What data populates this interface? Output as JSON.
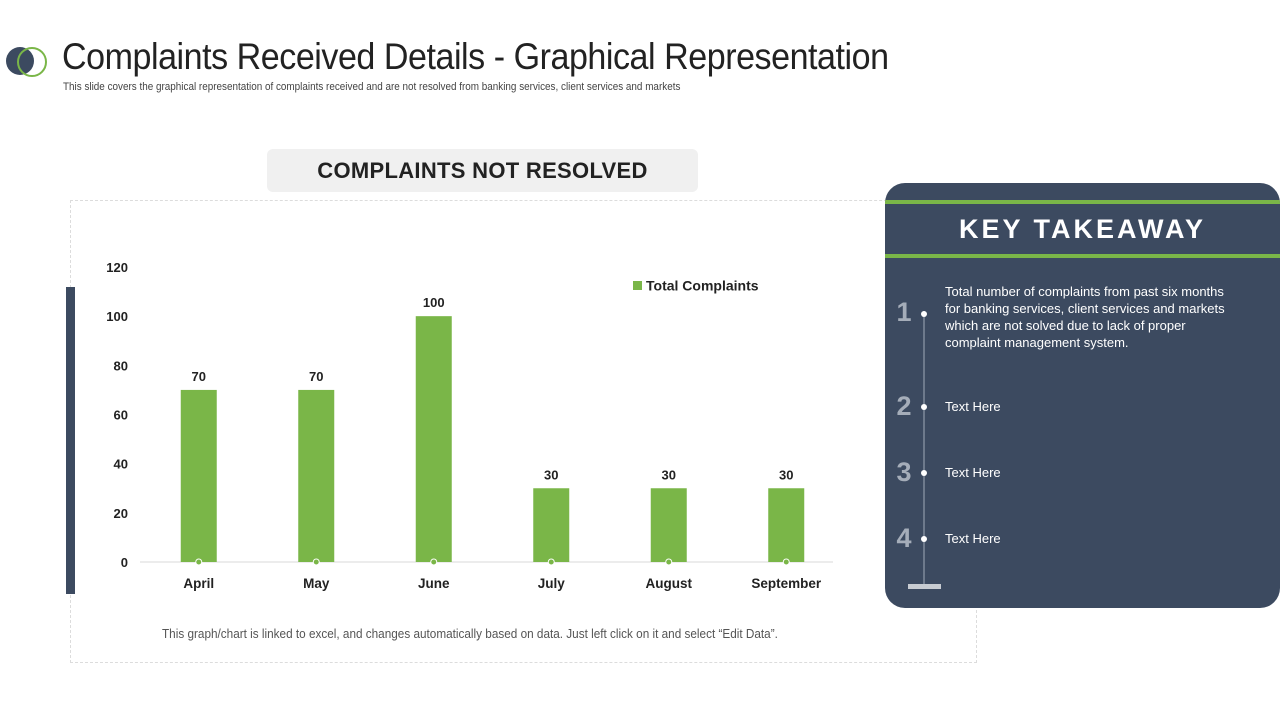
{
  "header": {
    "title": "Complaints Received Details - Graphical Representation",
    "subtitle": "This slide covers the graphical representation of complaints received and are not resolved from banking services, client services and markets"
  },
  "chart_panel": {
    "heading": "COMPLAINTS NOT RESOLVED",
    "note": "This graph/chart is linked to excel, and changes automatically based on data. Just left click on it and select “Edit Data”."
  },
  "chart_data": {
    "type": "bar",
    "title": "",
    "xlabel": "",
    "ylabel": "",
    "categories": [
      "April",
      "May",
      "June",
      "July",
      "August",
      "September"
    ],
    "series": [
      {
        "name": "Total Complaints",
        "values": [
          70,
          70,
          100,
          30,
          30,
          30
        ],
        "color": "#7ab648"
      }
    ],
    "ylim": [
      0,
      120
    ],
    "yticks": [
      0,
      20,
      40,
      60,
      80,
      100,
      120
    ],
    "data_labels": true,
    "grid": false,
    "legend": "top-right"
  },
  "takeaway": {
    "title": "KEY TAKEAWAY",
    "items": [
      {
        "num": "1",
        "text": "Total number of complaints from past six months for banking services, client services and markets which are not solved due to lack of proper complaint management system."
      },
      {
        "num": "2",
        "text": "Text Here"
      },
      {
        "num": "3",
        "text": "Text Here"
      },
      {
        "num": "4",
        "text": "Text Here"
      }
    ]
  },
  "colors": {
    "accent_green": "#7ab648",
    "navy": "#3c4a60",
    "header_bg": "#f0f0f0"
  }
}
